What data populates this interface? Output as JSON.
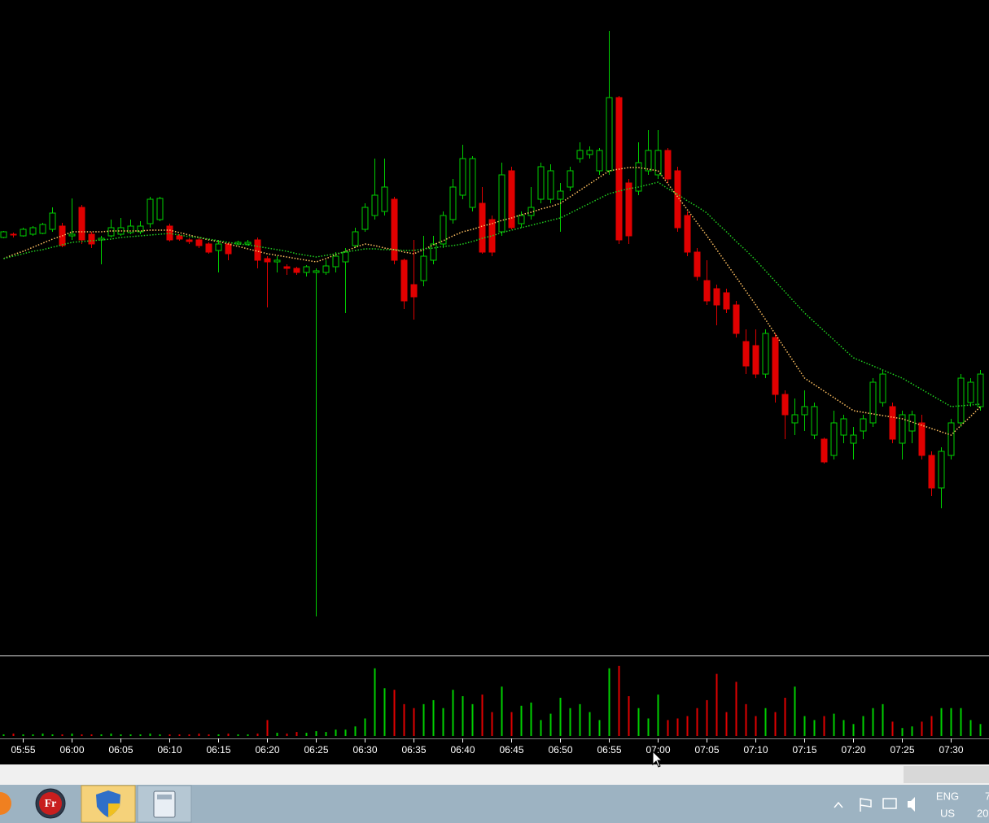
{
  "chart_data": {
    "type": "candlestick",
    "categories": [
      null,
      null,
      "05:55",
      null,
      null,
      null,
      null,
      "06:00",
      null,
      null,
      null,
      null,
      "06:05",
      null,
      null,
      null,
      null,
      "06:10",
      null,
      null,
      null,
      null,
      "06:15",
      null,
      null,
      null,
      null,
      "06:20",
      null,
      null,
      null,
      null,
      "06:25",
      null,
      null,
      null,
      null,
      "06:30",
      null,
      null,
      null,
      null,
      "06:35",
      null,
      null,
      null,
      null,
      "06:40",
      null,
      null,
      null,
      null,
      "06:45",
      null,
      null,
      null,
      null,
      "06:50",
      null,
      null,
      null,
      null,
      "06:55",
      null,
      null,
      null,
      null,
      "07:00",
      null,
      null,
      null,
      null,
      "07:05",
      null,
      null,
      null,
      null,
      "07:10",
      null,
      null,
      null,
      null,
      "07:15",
      null,
      null,
      null,
      null,
      "07:20",
      null,
      null,
      null,
      null,
      "07:25",
      null,
      null,
      null,
      null,
      "07:30",
      null,
      null,
      null
    ],
    "open": [
      508,
      512,
      510,
      512,
      513,
      518,
      522,
      510,
      545,
      512,
      505,
      510,
      512,
      514,
      515,
      525,
      530,
      522,
      510,
      505,
      505,
      500,
      492,
      500,
      500,
      500,
      505,
      482,
      478,
      472,
      470,
      465,
      465,
      465,
      472,
      478,
      498,
      518,
      535,
      540,
      555,
      480,
      450,
      455,
      480,
      500,
      530,
      560,
      545,
      550,
      530,
      515,
      590,
      525,
      535,
      555,
      555,
      555,
      570,
      605,
      610,
      590,
      590,
      680,
      575,
      565,
      590,
      585,
      615,
      590,
      535,
      490,
      455,
      445,
      440,
      425,
      380,
      375,
      340,
      385,
      315,
      280,
      290,
      265,
      260,
      240,
      265,
      255,
      270,
      280,
      305,
      300,
      255,
      270,
      280,
      240,
      200,
      240,
      280,
      305,
      300
    ],
    "high": [
      516,
      514,
      520,
      522,
      526,
      545,
      526,
      556,
      548,
      515,
      510,
      530,
      532,
      530,
      528,
      558,
      558,
      525,
      512,
      507,
      507,
      502,
      505,
      502,
      504,
      505,
      508,
      485,
      485,
      475,
      472,
      474,
      470,
      480,
      490,
      495,
      520,
      550,
      605,
      605,
      558,
      482,
      505,
      510,
      510,
      540,
      580,
      622,
      608,
      570,
      535,
      600,
      595,
      540,
      570,
      600,
      598,
      575,
      595,
      625,
      620,
      618,
      762,
      682,
      580,
      625,
      640,
      640,
      618,
      595,
      540,
      495,
      480,
      450,
      445,
      430,
      395,
      395,
      395,
      390,
      320,
      310,
      320,
      305,
      262,
      295,
      290,
      275,
      290,
      335,
      345,
      305,
      295,
      295,
      290,
      245,
      250,
      285,
      340,
      335,
      345
    ],
    "low": [
      507,
      508,
      509,
      510,
      512,
      515,
      496,
      505,
      500,
      495,
      475,
      508,
      510,
      512,
      512,
      520,
      528,
      503,
      504,
      500,
      495,
      488,
      465,
      480,
      498,
      498,
      470,
      422,
      465,
      462,
      462,
      460,
      42,
      462,
      465,
      415,
      495,
      515,
      530,
      535,
      475,
      420,
      407,
      448,
      475,
      495,
      525,
      555,
      540,
      488,
      485,
      510,
      518,
      520,
      530,
      550,
      550,
      515,
      565,
      600,
      605,
      585,
      585,
      500,
      500,
      560,
      585,
      580,
      575,
      515,
      485,
      455,
      425,
      400,
      415,
      385,
      340,
      335,
      335,
      305,
      260,
      265,
      270,
      260,
      230,
      235,
      255,
      235,
      260,
      275,
      300,
      255,
      235,
      255,
      235,
      190,
      175,
      235,
      275,
      300,
      295
    ],
    "close": [
      515,
      511,
      518,
      520,
      524,
      538,
      498,
      512,
      505,
      500,
      507,
      520,
      520,
      522,
      522,
      555,
      556,
      505,
      506,
      503,
      498,
      490,
      500,
      488,
      502,
      502,
      480,
      478,
      480,
      470,
      465,
      472,
      467,
      473,
      485,
      490,
      515,
      545,
      560,
      570,
      480,
      430,
      435,
      485,
      500,
      535,
      570,
      605,
      605,
      490,
      490,
      585,
      520,
      535,
      545,
      595,
      590,
      565,
      590,
      615,
      615,
      615,
      680,
      505,
      510,
      600,
      615,
      615,
      580,
      520,
      490,
      460,
      430,
      425,
      420,
      390,
      350,
      340,
      390,
      315,
      290,
      290,
      300,
      300,
      232,
      280,
      285,
      265,
      285,
      330,
      340,
      260,
      290,
      290,
      240,
      200,
      245,
      280,
      335,
      330,
      340
    ],
    "ma": [
      {
        "color": "#ffc060",
        "values": [
          482,
          487,
          491,
          496,
          501,
          506,
          510,
          515,
          515,
          515,
          515,
          516,
          516,
          516,
          516,
          517,
          517,
          517,
          514,
          511,
          508,
          505,
          503,
          500,
          497,
          494,
          491,
          488,
          486,
          484,
          482,
          480,
          478,
          482,
          487,
          491,
          496,
          500,
          498,
          495,
          493,
          490,
          488,
          493,
          499,
          504,
          510,
          515,
          518,
          522,
          525,
          529,
          532,
          536,
          539,
          543,
          546,
          550,
          558,
          566,
          574,
          582,
          590,
          592,
          594,
          594,
          592,
          590,
          574,
          558,
          542,
          526,
          510,
          493,
          476,
          459,
          442,
          425,
          407,
          389,
          371,
          353,
          335,
          327,
          319,
          311,
          303,
          295,
          293,
          291,
          289,
          287,
          285,
          281,
          277,
          273,
          269,
          265,
          277,
          288,
          300
        ]
      },
      {
        "color": "#20d020",
        "values": [
          482,
          485,
          488,
          491,
          493,
          496,
          499,
          502,
          503,
          504,
          505,
          506,
          508,
          509,
          510,
          511,
          512,
          513,
          511,
          509,
          508,
          506,
          504,
          502,
          500,
          499,
          497,
          495,
          493,
          491,
          488,
          486,
          484,
          486,
          488,
          490,
          492,
          494,
          494,
          493,
          493,
          492,
          492,
          494,
          495,
          497,
          498,
          500,
          503,
          507,
          510,
          514,
          517,
          520,
          523,
          526,
          529,
          532,
          538,
          544,
          550,
          556,
          562,
          565,
          568,
          570,
          573,
          576,
          568,
          561,
          553,
          546,
          538,
          526,
          515,
          503,
          492,
          480,
          467,
          454,
          441,
          428,
          415,
          404,
          393,
          382,
          371,
          360,
          355,
          350,
          345,
          340,
          335,
          328,
          321,
          314,
          307,
          300,
          301,
          302,
          303
        ]
      }
    ],
    "volume": [
      2,
      3,
      2,
      2,
      3,
      2,
      2,
      3,
      2,
      2,
      2,
      3,
      2,
      2,
      2,
      3,
      2,
      2,
      2,
      2,
      3,
      2,
      2,
      3,
      2,
      2,
      3,
      20,
      4,
      3,
      5,
      4,
      6,
      5,
      8,
      8,
      12,
      22,
      85,
      60,
      58,
      40,
      35,
      40,
      45,
      35,
      58,
      50,
      40,
      52,
      30,
      62,
      30,
      38,
      42,
      20,
      28,
      48,
      35,
      40,
      30,
      20,
      85,
      88,
      50,
      35,
      22,
      52,
      20,
      22,
      25,
      35,
      45,
      78,
      30,
      68,
      40,
      25,
      35,
      30,
      48,
      62,
      25,
      20,
      25,
      28,
      20,
      15,
      25,
      35,
      40,
      18,
      10,
      12,
      18,
      25,
      35,
      35,
      35,
      20,
      15
    ],
    "up_color": "#00d000",
    "down_color": "#e00000",
    "ylim": [
      0,
      800
    ],
    "vlim": [
      0,
      95
    ]
  },
  "taskbar": {
    "app_icon": "Fr",
    "language": "ENG",
    "region": "US",
    "clock_time": "7",
    "clock_date": "20"
  }
}
